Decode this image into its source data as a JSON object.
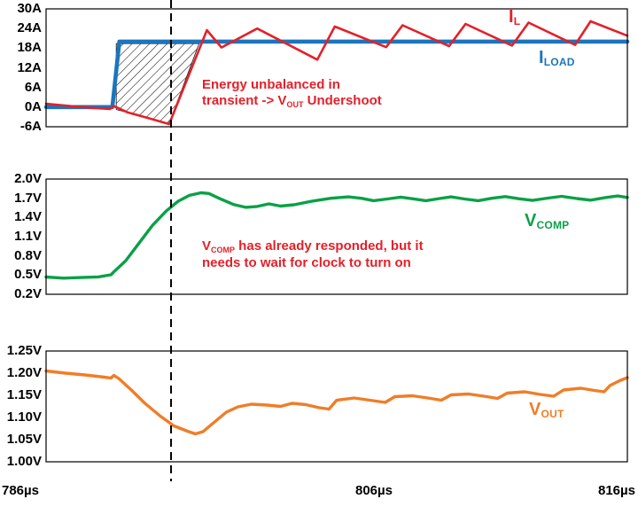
{
  "colors": {
    "red": "#e4202a",
    "blue": "#1c75bc",
    "green": "#0aa147",
    "orange": "#f07d28",
    "axis": "#000000"
  },
  "x_axis": {
    "min_us": 786,
    "max_us": 816,
    "labels": [
      "786µs",
      "806µs",
      "816µs"
    ]
  },
  "marker": {
    "dashed_line_us": 792.45
  },
  "legend": {
    "il": {
      "main": "I",
      "sub": "L"
    },
    "iload": {
      "main": "I",
      "sub": "LOAD"
    },
    "vcomp": {
      "main": "V",
      "sub": "COMP"
    },
    "vout": {
      "main": "V",
      "sub": "OUT"
    }
  },
  "annotations": {
    "ann1": {
      "line1": "Energy unbalanced in",
      "line2_pre": "transient -> V",
      "line2_sub": "OUT",
      "line2_post": " Undershoot"
    },
    "ann2": {
      "line1_pre": "V",
      "line1_sub": "COMP",
      "line1_post": " has already responded, but it",
      "line2": "needs to wait for clock to turn on"
    }
  },
  "chart_data": [
    {
      "type": "line",
      "name": "current-panel",
      "unit": "A",
      "ylim": [
        -6,
        30
      ],
      "yticks": [
        {
          "v": 30,
          "label": "30A"
        },
        {
          "v": 24,
          "label": "24A"
        },
        {
          "v": 18,
          "label": "18A"
        },
        {
          "v": 12,
          "label": "12A"
        },
        {
          "v": 6,
          "label": "6A"
        },
        {
          "v": 0,
          "label": "0A"
        },
        {
          "v": -6,
          "label": "-6A"
        }
      ],
      "series": [
        {
          "name": "I_LOAD",
          "color_key": "blue",
          "width": 4.6,
          "points": [
            [
              786.0,
              0
            ],
            [
              789.42,
              0
            ],
            [
              789.78,
              20
            ],
            [
              816.0,
              20
            ]
          ]
        },
        {
          "name": "I_L",
          "color_key": "red",
          "width": 2.6,
          "points": [
            [
              786.0,
              1.0
            ],
            [
              787.2,
              0.35
            ],
            [
              788.3,
              -0.2
            ],
            [
              789.3,
              -0.55
            ],
            [
              789.5,
              0.3
            ],
            [
              790.2,
              -1.6
            ],
            [
              791.2,
              -3.2
            ],
            [
              792.35,
              -5.2
            ],
            [
              794.3,
              23.5
            ],
            [
              795.05,
              18.2
            ],
            [
              796.9,
              24.0
            ],
            [
              800.0,
              14.5
            ],
            [
              800.9,
              24.6
            ],
            [
              803.55,
              18.3
            ],
            [
              804.4,
              25.0
            ],
            [
              806.8,
              18.6
            ],
            [
              807.65,
              25.4
            ],
            [
              810.05,
              18.8
            ],
            [
              810.9,
              25.8
            ],
            [
              813.3,
              19.0
            ],
            [
              814.1,
              26.2
            ],
            [
              816.0,
              21.8
            ]
          ]
        }
      ],
      "hatch_region": {
        "meaning": "energy deficit during transient",
        "points": [
          [
            789.62,
            19.4
          ],
          [
            793.9,
            19.4
          ],
          [
            792.35,
            -5.0
          ],
          [
            791.0,
            -2.9
          ],
          [
            789.62,
            -0.75
          ]
        ]
      }
    },
    {
      "type": "line",
      "name": "vcomp-panel",
      "unit": "V",
      "ylim": [
        0.2,
        2.0
      ],
      "yticks": [
        {
          "v": 2.0,
          "label": "2.0V"
        },
        {
          "v": 1.7,
          "label": "1.7V"
        },
        {
          "v": 1.4,
          "label": "1.4V"
        },
        {
          "v": 1.1,
          "label": "1.1V"
        },
        {
          "v": 0.8,
          "label": "0.8V"
        },
        {
          "v": 0.5,
          "label": "0.5V"
        },
        {
          "v": 0.2,
          "label": "0.2V"
        }
      ],
      "series": [
        {
          "name": "V_COMP",
          "color_key": "green",
          "width": 3.4,
          "points": [
            [
              786.0,
              0.47
            ],
            [
              786.9,
              0.452
            ],
            [
              787.8,
              0.462
            ],
            [
              788.7,
              0.472
            ],
            [
              789.35,
              0.505
            ],
            [
              789.55,
              0.565
            ],
            [
              790.1,
              0.72
            ],
            [
              790.8,
              1.0
            ],
            [
              791.5,
              1.28
            ],
            [
              792.2,
              1.5
            ],
            [
              792.8,
              1.65
            ],
            [
              793.4,
              1.745
            ],
            [
              794.0,
              1.785
            ],
            [
              794.4,
              1.775
            ],
            [
              795.0,
              1.69
            ],
            [
              795.7,
              1.6
            ],
            [
              796.3,
              1.558
            ],
            [
              796.9,
              1.572
            ],
            [
              797.5,
              1.612
            ],
            [
              798.1,
              1.578
            ],
            [
              798.8,
              1.598
            ],
            [
              799.7,
              1.652
            ],
            [
              800.7,
              1.7
            ],
            [
              801.6,
              1.722
            ],
            [
              802.3,
              1.698
            ],
            [
              802.9,
              1.662
            ],
            [
              803.6,
              1.688
            ],
            [
              804.3,
              1.718
            ],
            [
              804.9,
              1.692
            ],
            [
              805.6,
              1.662
            ],
            [
              806.3,
              1.696
            ],
            [
              806.9,
              1.722
            ],
            [
              807.6,
              1.688
            ],
            [
              808.3,
              1.662
            ],
            [
              809.0,
              1.7
            ],
            [
              809.7,
              1.726
            ],
            [
              810.4,
              1.692
            ],
            [
              811.1,
              1.666
            ],
            [
              811.9,
              1.702
            ],
            [
              812.6,
              1.73
            ],
            [
              813.4,
              1.696
            ],
            [
              814.1,
              1.67
            ],
            [
              814.9,
              1.712
            ],
            [
              815.5,
              1.736
            ],
            [
              816.0,
              1.712
            ]
          ]
        }
      ]
    },
    {
      "type": "line",
      "name": "vout-panel",
      "unit": "V",
      "ylim": [
        1.0,
        1.25
      ],
      "yticks": [
        {
          "v": 1.25,
          "label": "1.25V"
        },
        {
          "v": 1.2,
          "label": "1.20V"
        },
        {
          "v": 1.15,
          "label": "1.15V"
        },
        {
          "v": 1.1,
          "label": "1.10V"
        },
        {
          "v": 1.05,
          "label": "1.05V"
        },
        {
          "v": 1.0,
          "label": "1.00V"
        }
      ],
      "series": [
        {
          "name": "V_OUT",
          "color_key": "orange",
          "width": 3.4,
          "points": [
            [
              786.0,
              1.205
            ],
            [
              787.0,
              1.2
            ],
            [
              788.0,
              1.196
            ],
            [
              789.0,
              1.191
            ],
            [
              789.35,
              1.189
            ],
            [
              789.5,
              1.195
            ],
            [
              789.75,
              1.188
            ],
            [
              790.4,
              1.162
            ],
            [
              791.1,
              1.132
            ],
            [
              791.9,
              1.103
            ],
            [
              792.6,
              1.081
            ],
            [
              793.3,
              1.069
            ],
            [
              793.7,
              1.063
            ],
            [
              794.1,
              1.068
            ],
            [
              794.7,
              1.09
            ],
            [
              795.3,
              1.112
            ],
            [
              795.9,
              1.124
            ],
            [
              796.6,
              1.13
            ],
            [
              797.4,
              1.128
            ],
            [
              798.1,
              1.125
            ],
            [
              798.7,
              1.132
            ],
            [
              799.4,
              1.129
            ],
            [
              800.1,
              1.122
            ],
            [
              800.6,
              1.119
            ],
            [
              801.0,
              1.139
            ],
            [
              801.9,
              1.144
            ],
            [
              802.7,
              1.139
            ],
            [
              803.5,
              1.134
            ],
            [
              804.0,
              1.147
            ],
            [
              804.9,
              1.149
            ],
            [
              805.7,
              1.144
            ],
            [
              806.4,
              1.139
            ],
            [
              806.9,
              1.151
            ],
            [
              807.8,
              1.153
            ],
            [
              808.6,
              1.148
            ],
            [
              809.3,
              1.143
            ],
            [
              809.8,
              1.155
            ],
            [
              810.7,
              1.158
            ],
            [
              811.5,
              1.152
            ],
            [
              812.2,
              1.148
            ],
            [
              812.7,
              1.162
            ],
            [
              813.6,
              1.166
            ],
            [
              814.3,
              1.161
            ],
            [
              814.8,
              1.158
            ],
            [
              815.1,
              1.172
            ],
            [
              815.6,
              1.183
            ],
            [
              816.0,
              1.19
            ]
          ]
        }
      ]
    }
  ]
}
